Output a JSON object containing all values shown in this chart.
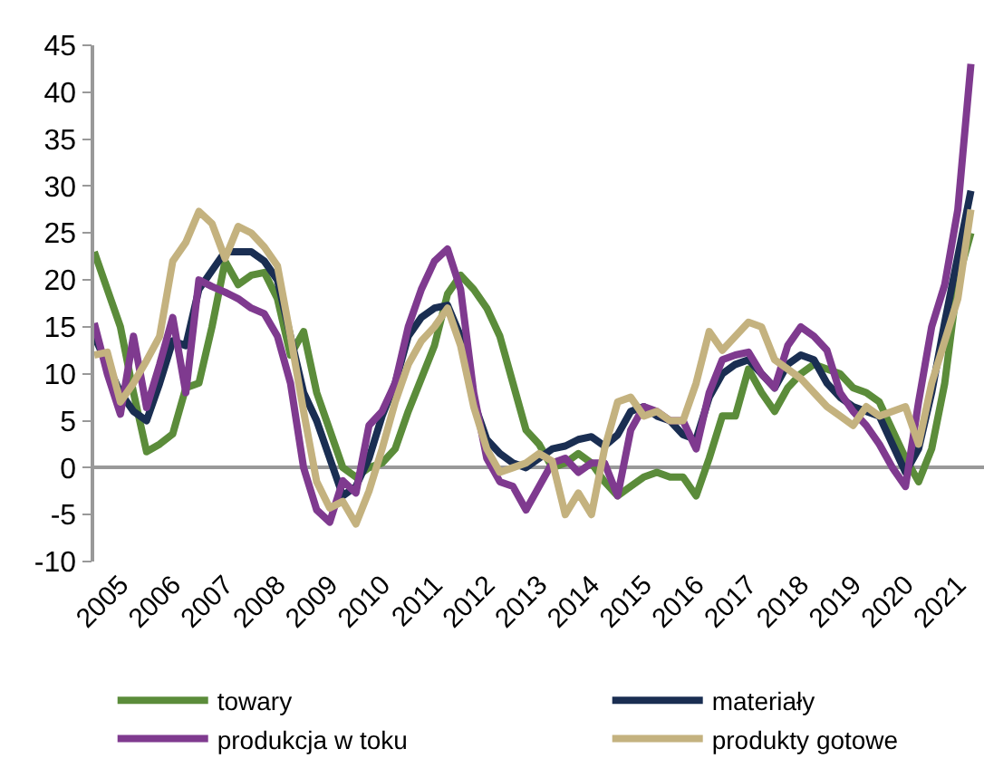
{
  "chart_data": {
    "type": "line",
    "x": [
      2005,
      2005.25,
      2005.5,
      2005.75,
      2006,
      2006.25,
      2006.5,
      2006.75,
      2007,
      2007.25,
      2007.5,
      2007.75,
      2008,
      2008.25,
      2008.5,
      2008.75,
      2009,
      2009.25,
      2009.5,
      2009.75,
      2010,
      2010.25,
      2010.5,
      2010.75,
      2011,
      2011.25,
      2011.5,
      2011.75,
      2012,
      2012.25,
      2012.5,
      2012.75,
      2013,
      2013.25,
      2013.5,
      2013.75,
      2014,
      2014.25,
      2014.5,
      2014.75,
      2015,
      2015.25,
      2015.5,
      2015.75,
      2016,
      2016.25,
      2016.5,
      2016.75,
      2017,
      2017.25,
      2017.5,
      2017.75,
      2018,
      2018.25,
      2018.5,
      2018.75,
      2019,
      2019.25,
      2019.5,
      2019.75,
      2020,
      2020.25,
      2020.5,
      2020.75,
      2021,
      2021.25,
      2021.5,
      2021.75
    ],
    "series": [
      {
        "name": "towary",
        "color": "#5b8c3a",
        "values": [
          23,
          19,
          15,
          8,
          1.7,
          2.5,
          3.6,
          8.5,
          9,
          15,
          22,
          19.5,
          20.5,
          20.8,
          18,
          12,
          14.5,
          8,
          4,
          0,
          -1,
          0,
          0.5,
          2,
          6,
          9.5,
          13,
          18.5,
          20.5,
          19,
          17,
          14,
          9,
          4,
          2.5,
          0,
          0.5,
          1.5,
          0.5,
          -1.5,
          -3,
          -2,
          -1,
          -0.5,
          -1,
          -1,
          -3,
          1,
          5.5,
          5.5,
          10.5,
          8,
          6,
          8.5,
          10,
          11,
          10.5,
          10,
          8.5,
          8,
          7,
          4,
          1,
          -1.5,
          2,
          9,
          20,
          25
        ]
      },
      {
        "name": "materiały",
        "color": "#1a2e52",
        "values": [
          14,
          11,
          8,
          6,
          5,
          9,
          13.5,
          13,
          19,
          21,
          23,
          23,
          23,
          22,
          20,
          14,
          8,
          5,
          1,
          -3,
          -2,
          1,
          5.5,
          9,
          14,
          16,
          17,
          17.3,
          14,
          7,
          3,
          1.5,
          0.5,
          0,
          1,
          2,
          2.3,
          3,
          3.3,
          2.3,
          3.5,
          6,
          6.5,
          5.5,
          5,
          3.5,
          3,
          7.5,
          10,
          11,
          11.5,
          10,
          8.5,
          11,
          12,
          11.5,
          9,
          7.5,
          6.5,
          6,
          5.5,
          2.5,
          -0.5,
          2,
          8,
          15.5,
          22.5,
          29.5
        ]
      },
      {
        "name": "produkcja w toku",
        "color": "#7f3a8f",
        "values": [
          15.4,
          10,
          5.7,
          14,
          6.4,
          11,
          16,
          8,
          20,
          19.3,
          18.7,
          18,
          17,
          16.4,
          14,
          9,
          0,
          -4.5,
          -5.8,
          -1.4,
          -2.7,
          4.5,
          6,
          9,
          15,
          19,
          22,
          23.3,
          19,
          8,
          1,
          -1.5,
          -2,
          -4.5,
          -2,
          0.5,
          1,
          -0.5,
          0.5,
          0.5,
          -3,
          4,
          6.5,
          6,
          5,
          5,
          2,
          8,
          11.5,
          12,
          12.3,
          10,
          8.5,
          13,
          15,
          14,
          12.5,
          8,
          6,
          4.5,
          2.5,
          0,
          -2,
          7,
          15,
          19.5,
          27.5,
          43
        ]
      },
      {
        "name": "produkty gotowe",
        "color": "#c4b27f",
        "values": [
          12,
          12.3,
          7,
          9,
          11.4,
          14,
          22,
          24,
          27.3,
          26,
          22.3,
          25.7,
          25,
          23.5,
          21.5,
          14,
          6,
          -1.5,
          -4.3,
          -3.6,
          -6,
          -2.5,
          2,
          7,
          11,
          13.5,
          15,
          17,
          13,
          6.5,
          2,
          -0.5,
          0,
          0.5,
          1.5,
          0.7,
          -5,
          -2.7,
          -5,
          2,
          7,
          7.5,
          5.5,
          6,
          5,
          5,
          9,
          14.5,
          12.5,
          14,
          15.5,
          15,
          11.5,
          10.5,
          9.5,
          8,
          6.5,
          5.5,
          4.5,
          6.5,
          5.5,
          6,
          6.5,
          2.5,
          9,
          13.5,
          18,
          27.5
        ]
      }
    ],
    "xlim": [
      2005,
      2022
    ],
    "xticks": [
      {
        "value": 2005.5,
        "label": "2005"
      },
      {
        "value": 2006.5,
        "label": "2006"
      },
      {
        "value": 2007.5,
        "label": "2007"
      },
      {
        "value": 2008.5,
        "label": "2008"
      },
      {
        "value": 2009.5,
        "label": "2009"
      },
      {
        "value": 2010.5,
        "label": "2010"
      },
      {
        "value": 2011.5,
        "label": "2011"
      },
      {
        "value": 2012.5,
        "label": "2012"
      },
      {
        "value": 2013.5,
        "label": "2013"
      },
      {
        "value": 2014.5,
        "label": "2014"
      },
      {
        "value": 2015.5,
        "label": "2015"
      },
      {
        "value": 2016.5,
        "label": "2016"
      },
      {
        "value": 2017.5,
        "label": "2017"
      },
      {
        "value": 2018.5,
        "label": "2018"
      },
      {
        "value": 2019.5,
        "label": "2019"
      },
      {
        "value": 2020.5,
        "label": "2020"
      },
      {
        "value": 2021.5,
        "label": "2021"
      }
    ],
    "ylim": [
      -10,
      45
    ],
    "yticks": [
      -10,
      -5,
      0,
      5,
      10,
      15,
      20,
      25,
      30,
      35,
      40,
      45
    ],
    "legend": "bottom",
    "marker": "none",
    "line_style": "solid"
  }
}
